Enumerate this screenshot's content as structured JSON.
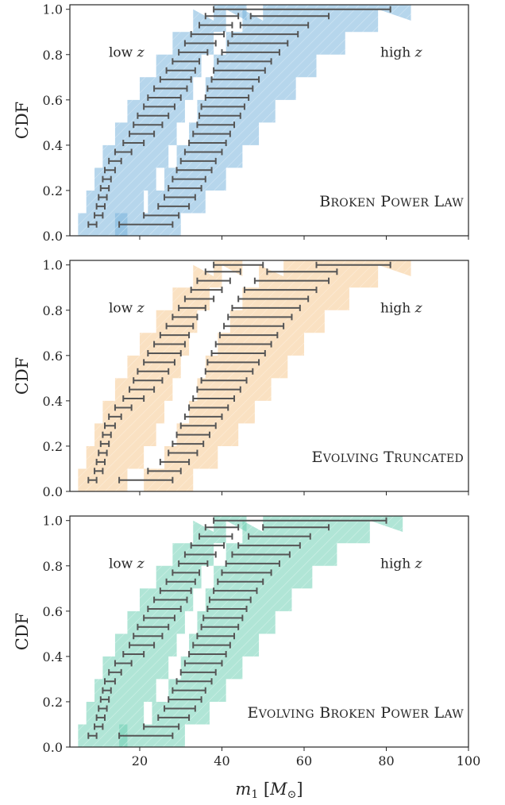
{
  "colors": {
    "panel1": "#7ab4dc",
    "panel2": "#f5c98f",
    "panel3": "#6fcfb5",
    "errorbar": "#555555",
    "axis": "#262626"
  },
  "axes": {
    "xlabel": "m₁ [M⊙]",
    "xlabel_main": "m",
    "xlabel_sub": "1",
    "xlabel_unit_open": " [",
    "xlabel_unit_M": "M",
    "xlabel_unit_sub": "⊙",
    "xlabel_unit_close": "]",
    "ylabel": "CDF",
    "xlim": [
      3,
      100
    ],
    "ylim": [
      0,
      1.02
    ],
    "xticks": [
      20,
      40,
      60,
      80,
      100
    ],
    "yticks": [
      0.0,
      0.2,
      0.4,
      0.6,
      0.8,
      1.0
    ],
    "xtick_labels": [
      "20",
      "40",
      "60",
      "80",
      "100"
    ],
    "ytick_labels": [
      "0.0",
      "0.2",
      "0.4",
      "0.6",
      "0.8",
      "1.0"
    ]
  },
  "region_labels": {
    "low_word": "low",
    "high_word": "high",
    "var": "z"
  },
  "chart_data": [
    {
      "type": "area",
      "model": "Broken Power Law",
      "label": "Broken Power Law",
      "color_key": "panel1",
      "series": [
        {
          "region": "low z",
          "band": {
            "y": [
              0.05,
              0.15,
              0.25,
              0.35,
              0.45,
              0.55,
              0.65,
              0.75,
              0.85,
              0.95,
              1.0
            ],
            "lo": [
              5,
              7,
              9,
              11,
              14,
              17,
              20,
              24,
              28,
              33,
              38
            ],
            "hi": [
              17,
              21,
              24,
              27,
              29,
              31,
              33,
              35,
              38,
              41,
              46
            ]
          },
          "errorbars": {
            "y": [
              0.05,
              0.09,
              0.13,
              0.17,
              0.21,
              0.25,
              0.29,
              0.33,
              0.37,
              0.41,
              0.45,
              0.49,
              0.53,
              0.57,
              0.61,
              0.65,
              0.69,
              0.73,
              0.77,
              0.81,
              0.85,
              0.89,
              0.93,
              0.97
            ],
            "lo": [
              7.5,
              9.0,
              9.5,
              10.0,
              10.5,
              11.0,
              11.5,
              12.5,
              14.0,
              16.0,
              17.5,
              18.5,
              19.5,
              21.0,
              22.0,
              23.5,
              25.0,
              26.5,
              28.0,
              29.5,
              31.0,
              32.5,
              34.5,
              36.0
            ],
            "hi": [
              9.5,
              11.0,
              11.5,
              12.0,
              12.5,
              13.0,
              14.0,
              15.5,
              18.0,
              21.0,
              23.5,
              25.5,
              27.0,
              28.5,
              30.0,
              31.5,
              32.5,
              33.5,
              34.5,
              36.5,
              38.5,
              40.5,
              42.5,
              44.0
            ]
          }
        },
        {
          "region": "high z",
          "band": {
            "y": [
              0.05,
              0.15,
              0.25,
              0.35,
              0.45,
              0.55,
              0.65,
              0.75,
              0.85,
              0.95,
              1.0
            ],
            "lo": [
              14,
              22,
              26,
              29,
              32,
              34,
              36,
              38,
              41,
              45,
              50
            ],
            "hi": [
              30,
              36,
              41,
              45,
              49,
              53,
              58,
              63,
              70,
              78,
              86
            ]
          },
          "errorbars": {
            "y": [
              0.05,
              0.09,
              0.13,
              0.17,
              0.21,
              0.25,
              0.29,
              0.33,
              0.37,
              0.41,
              0.45,
              0.49,
              0.53,
              0.57,
              0.61,
              0.65,
              0.69,
              0.73,
              0.77,
              0.81,
              0.85,
              0.89,
              0.93,
              0.97,
              1.0
            ],
            "lo": [
              15.0,
              21.0,
              24.5,
              26.0,
              27.0,
              28.0,
              29.0,
              30.0,
              31.0,
              32.0,
              33.0,
              34.0,
              34.5,
              35.0,
              36.0,
              36.5,
              37.5,
              38.0,
              39.0,
              40.0,
              41.5,
              42.5,
              44.5,
              47.0,
              38.0
            ],
            "hi": [
              28.0,
              29.5,
              32.0,
              33.5,
              35.0,
              36.0,
              37.5,
              38.5,
              40.0,
              41.0,
              42.0,
              43.0,
              44.5,
              45.5,
              46.5,
              47.5,
              49.0,
              50.5,
              52.0,
              54.0,
              56.0,
              58.5,
              61.0,
              66.0,
              81.0
            ]
          }
        }
      ]
    },
    {
      "type": "area",
      "model": "Evolving Truncated",
      "label": "Evolving Truncated",
      "color_key": "panel2",
      "series": [
        {
          "region": "low z",
          "band": {
            "y": [
              0.05,
              0.15,
              0.25,
              0.35,
              0.45,
              0.55,
              0.65,
              0.75,
              0.85,
              0.95,
              1.0
            ],
            "lo": [
              5,
              7,
              9,
              11,
              14,
              17,
              20,
              24,
              28,
              33,
              38
            ],
            "hi": [
              17,
              21,
              24,
              26,
              28,
              30,
              32,
              34,
              37,
              40,
              45
            ]
          },
          "errorbars": {
            "y": [
              0.05,
              0.09,
              0.13,
              0.17,
              0.21,
              0.25,
              0.29,
              0.33,
              0.37,
              0.41,
              0.45,
              0.49,
              0.53,
              0.57,
              0.61,
              0.65,
              0.69,
              0.73,
              0.77,
              0.81,
              0.85,
              0.89,
              0.93,
              0.97,
              1.0
            ],
            "lo": [
              7.5,
              9.0,
              9.5,
              10.0,
              10.5,
              11.0,
              11.5,
              12.5,
              14.0,
              16.0,
              17.5,
              18.5,
              19.5,
              21.0,
              22.0,
              23.5,
              25.0,
              26.5,
              28.0,
              29.5,
              31.0,
              32.5,
              34.0,
              36.0,
              38.0
            ],
            "hi": [
              9.5,
              11.0,
              11.5,
              12.0,
              12.5,
              13.0,
              14.0,
              15.5,
              18.0,
              21.0,
              23.5,
              25.5,
              27.0,
              28.5,
              30.0,
              31.0,
              32.0,
              33.0,
              34.0,
              36.0,
              38.0,
              40.0,
              42.0,
              44.5,
              50.0
            ]
          }
        },
        {
          "region": "high z",
          "band": {
            "y": [
              0.05,
              0.15,
              0.25,
              0.35,
              0.45,
              0.55,
              0.65,
              0.75,
              0.85,
              0.95,
              1.0
            ],
            "lo": [
              21,
              26,
              29,
              32,
              34,
              36,
              39,
              42,
              45,
              49,
              55
            ],
            "hi": [
              33,
              39,
              44,
              48,
              52,
              56,
              60,
              65,
              71,
              78,
              86
            ]
          },
          "errorbars": {
            "y": [
              0.05,
              0.09,
              0.13,
              0.17,
              0.21,
              0.25,
              0.29,
              0.33,
              0.37,
              0.41,
              0.45,
              0.49,
              0.53,
              0.57,
              0.61,
              0.65,
              0.69,
              0.73,
              0.77,
              0.81,
              0.85,
              0.89,
              0.93,
              0.97,
              1.0
            ],
            "lo": [
              15.0,
              22.0,
              25.0,
              27.0,
              28.0,
              29.0,
              30.0,
              31.0,
              32.0,
              33.0,
              34.0,
              35.0,
              36.0,
              36.5,
              37.5,
              38.5,
              39.5,
              40.5,
              41.5,
              42.5,
              44.0,
              45.5,
              48.0,
              51.0,
              63.0
            ],
            "hi": [
              28.0,
              30.0,
              32.0,
              34.0,
              35.5,
              37.0,
              38.5,
              40.0,
              41.5,
              43.0,
              44.5,
              46.0,
              47.5,
              49.0,
              50.5,
              52.0,
              53.5,
              55.0,
              57.0,
              59.0,
              61.0,
              63.0,
              66.0,
              68.0,
              81.0
            ]
          }
        }
      ]
    },
    {
      "type": "area",
      "model": "Evolving Broken Power Law",
      "label": "Evolving Broken Power Law",
      "color_key": "panel3",
      "series": [
        {
          "region": "low z",
          "band": {
            "y": [
              0.05,
              0.15,
              0.25,
              0.35,
              0.45,
              0.55,
              0.65,
              0.75,
              0.85,
              0.95,
              1.0
            ],
            "lo": [
              5,
              7,
              9,
              11,
              14,
              17,
              20,
              24,
              28,
              33,
              38
            ],
            "hi": [
              17,
              21,
              24,
              27,
              29,
              31,
              33,
              35,
              38,
              41,
              46
            ]
          },
          "errorbars": {
            "y": [
              0.05,
              0.09,
              0.13,
              0.17,
              0.21,
              0.25,
              0.29,
              0.33,
              0.37,
              0.41,
              0.45,
              0.49,
              0.53,
              0.57,
              0.61,
              0.65,
              0.69,
              0.73,
              0.77,
              0.81,
              0.85,
              0.89,
              0.93,
              0.97
            ],
            "lo": [
              7.5,
              9.0,
              9.5,
              10.0,
              10.5,
              11.0,
              11.5,
              12.5,
              14.0,
              16.0,
              17.5,
              18.5,
              19.5,
              21.0,
              22.0,
              23.5,
              25.0,
              26.5,
              28.0,
              29.5,
              31.0,
              32.5,
              34.5,
              36.0
            ],
            "hi": [
              9.5,
              11.0,
              11.5,
              12.0,
              12.5,
              13.0,
              14.0,
              15.5,
              18.0,
              21.0,
              23.5,
              25.5,
              27.0,
              28.5,
              30.0,
              31.5,
              32.5,
              33.5,
              34.5,
              36.5,
              38.5,
              40.5,
              42.5,
              44.0
            ]
          }
        },
        {
          "region": "high z",
          "band": {
            "y": [
              0.05,
              0.15,
              0.25,
              0.35,
              0.45,
              0.55,
              0.65,
              0.75,
              0.85,
              0.95,
              1.0
            ],
            "lo": [
              15,
              23,
              27,
              30,
              32,
              34,
              36,
              38,
              41,
              45,
              50
            ],
            "hi": [
              31,
              37,
              41,
              45,
              49,
              53,
              57,
              62,
              68,
              76,
              84
            ]
          },
          "errorbars": {
            "y": [
              0.05,
              0.09,
              0.13,
              0.17,
              0.21,
              0.25,
              0.29,
              0.33,
              0.37,
              0.41,
              0.45,
              0.49,
              0.53,
              0.57,
              0.61,
              0.65,
              0.69,
              0.73,
              0.77,
              0.81,
              0.85,
              0.89,
              0.93,
              0.97,
              1.0
            ],
            "lo": [
              15.0,
              21.0,
              24.5,
              26.0,
              27.0,
              28.0,
              29.0,
              30.0,
              31.0,
              32.0,
              33.0,
              34.0,
              35.0,
              35.5,
              36.5,
              37.0,
              38.0,
              39.0,
              40.0,
              41.0,
              42.5,
              44.0,
              46.5,
              50.0,
              38.0
            ],
            "hi": [
              28.0,
              29.5,
              32.0,
              33.5,
              35.0,
              36.0,
              37.5,
              38.5,
              40.0,
              41.0,
              42.0,
              43.0,
              44.0,
              45.0,
              46.0,
              47.0,
              48.5,
              50.0,
              52.0,
              54.0,
              56.5,
              59.0,
              61.5,
              66.0,
              80.0
            ]
          }
        }
      ]
    }
  ]
}
